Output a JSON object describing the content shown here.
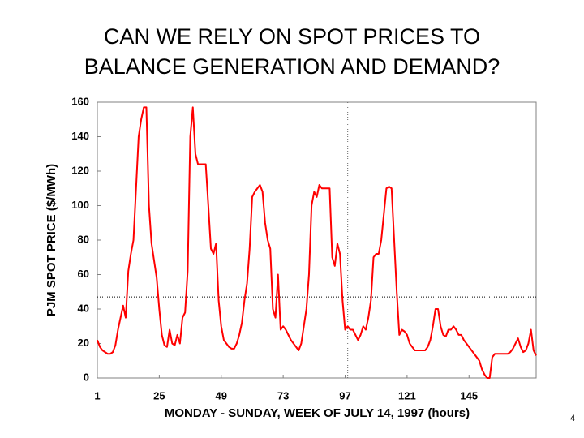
{
  "chart_data": {
    "type": "line",
    "title": [
      "CAN WE RELY ON SPOT PRICES TO",
      "BALANCE GENERATION AND DEMAND?"
    ],
    "x_label": "MONDAY - SUNDAY, WEEK OF JULY 14, 1997 (hours)",
    "y_label": "PJM SPOT PRICE ($/MWh)",
    "page_number": "4",
    "color": "#ff0000",
    "x": [
      1,
      2,
      3,
      4,
      5,
      6,
      7,
      8,
      9,
      10,
      11,
      12,
      13,
      14,
      15,
      16,
      17,
      18,
      19,
      20,
      21,
      22,
      23,
      24,
      25,
      26,
      27,
      28,
      29,
      30,
      31,
      32,
      33,
      34,
      35,
      36,
      37,
      38,
      39,
      40,
      41,
      42,
      43,
      44,
      45,
      46,
      47,
      48,
      49,
      50,
      51,
      52,
      53,
      54,
      55,
      56,
      57,
      58,
      59,
      60,
      61,
      62,
      63,
      64,
      65,
      66,
      67,
      68,
      69,
      70,
      71,
      72,
      73,
      74,
      75,
      76,
      77,
      78,
      79,
      80,
      81,
      82,
      83,
      84,
      85,
      86,
      87,
      88,
      89,
      90,
      91,
      92,
      93,
      94,
      95,
      96,
      97,
      98,
      99,
      100,
      101,
      102,
      103,
      104,
      105,
      106,
      107,
      108,
      109,
      110,
      111,
      112,
      113,
      114,
      115,
      116,
      117,
      118,
      119,
      120,
      121,
      122,
      123,
      124,
      125,
      126,
      127,
      128,
      129,
      130,
      131,
      132,
      133,
      134,
      135,
      136,
      137,
      138,
      139,
      140,
      141,
      142,
      143,
      144,
      145,
      146,
      147,
      148,
      149,
      150,
      151,
      152,
      153,
      154,
      155,
      156,
      157,
      158,
      159,
      160,
      161,
      162,
      163,
      164,
      165,
      166,
      167,
      168,
      169,
      170,
      171
    ],
    "values": [
      22,
      18,
      16,
      15,
      14,
      14,
      15,
      19,
      28,
      35,
      42,
      35,
      62,
      72,
      80,
      110,
      140,
      150,
      157,
      157,
      100,
      78,
      68,
      58,
      40,
      25,
      19,
      18,
      28,
      20,
      19,
      25,
      20,
      35,
      38,
      62,
      140,
      157,
      130,
      124,
      124,
      124,
      124,
      100,
      75,
      72,
      78,
      45,
      30,
      22,
      20,
      18,
      17,
      17,
      20,
      25,
      32,
      45,
      55,
      75,
      105,
      108,
      110,
      112,
      108,
      90,
      80,
      75,
      40,
      35,
      60,
      28,
      30,
      28,
      25,
      22,
      20,
      18,
      16,
      20,
      30,
      40,
      60,
      100,
      108,
      105,
      112,
      110,
      110,
      110,
      110,
      70,
      65,
      78,
      72,
      45,
      28,
      30,
      28,
      28,
      25,
      22,
      25,
      30,
      28,
      35,
      45,
      70,
      72,
      72,
      80,
      95,
      110,
      111,
      110,
      80,
      50,
      25,
      28,
      27,
      25,
      20,
      18,
      16,
      16,
      16,
      16,
      16,
      18,
      22,
      30,
      40,
      40,
      30,
      25,
      24,
      28,
      28,
      30,
      28,
      25,
      25,
      22,
      20,
      18,
      16,
      14,
      12,
      10,
      5,
      2,
      0,
      0,
      12,
      14,
      14,
      14,
      14,
      14,
      14,
      15,
      17,
      20,
      23,
      18,
      15,
      16,
      20,
      28,
      16,
      13
    ],
    "xlim": [
      1,
      171
    ],
    "xticks": [
      1,
      25,
      49,
      73,
      97,
      121,
      145
    ],
    "ylim": [
      0,
      160
    ],
    "yticks": [
      0,
      20,
      40,
      60,
      80,
      100,
      120,
      140,
      160
    ],
    "hline": 47,
    "vline": 98
  }
}
